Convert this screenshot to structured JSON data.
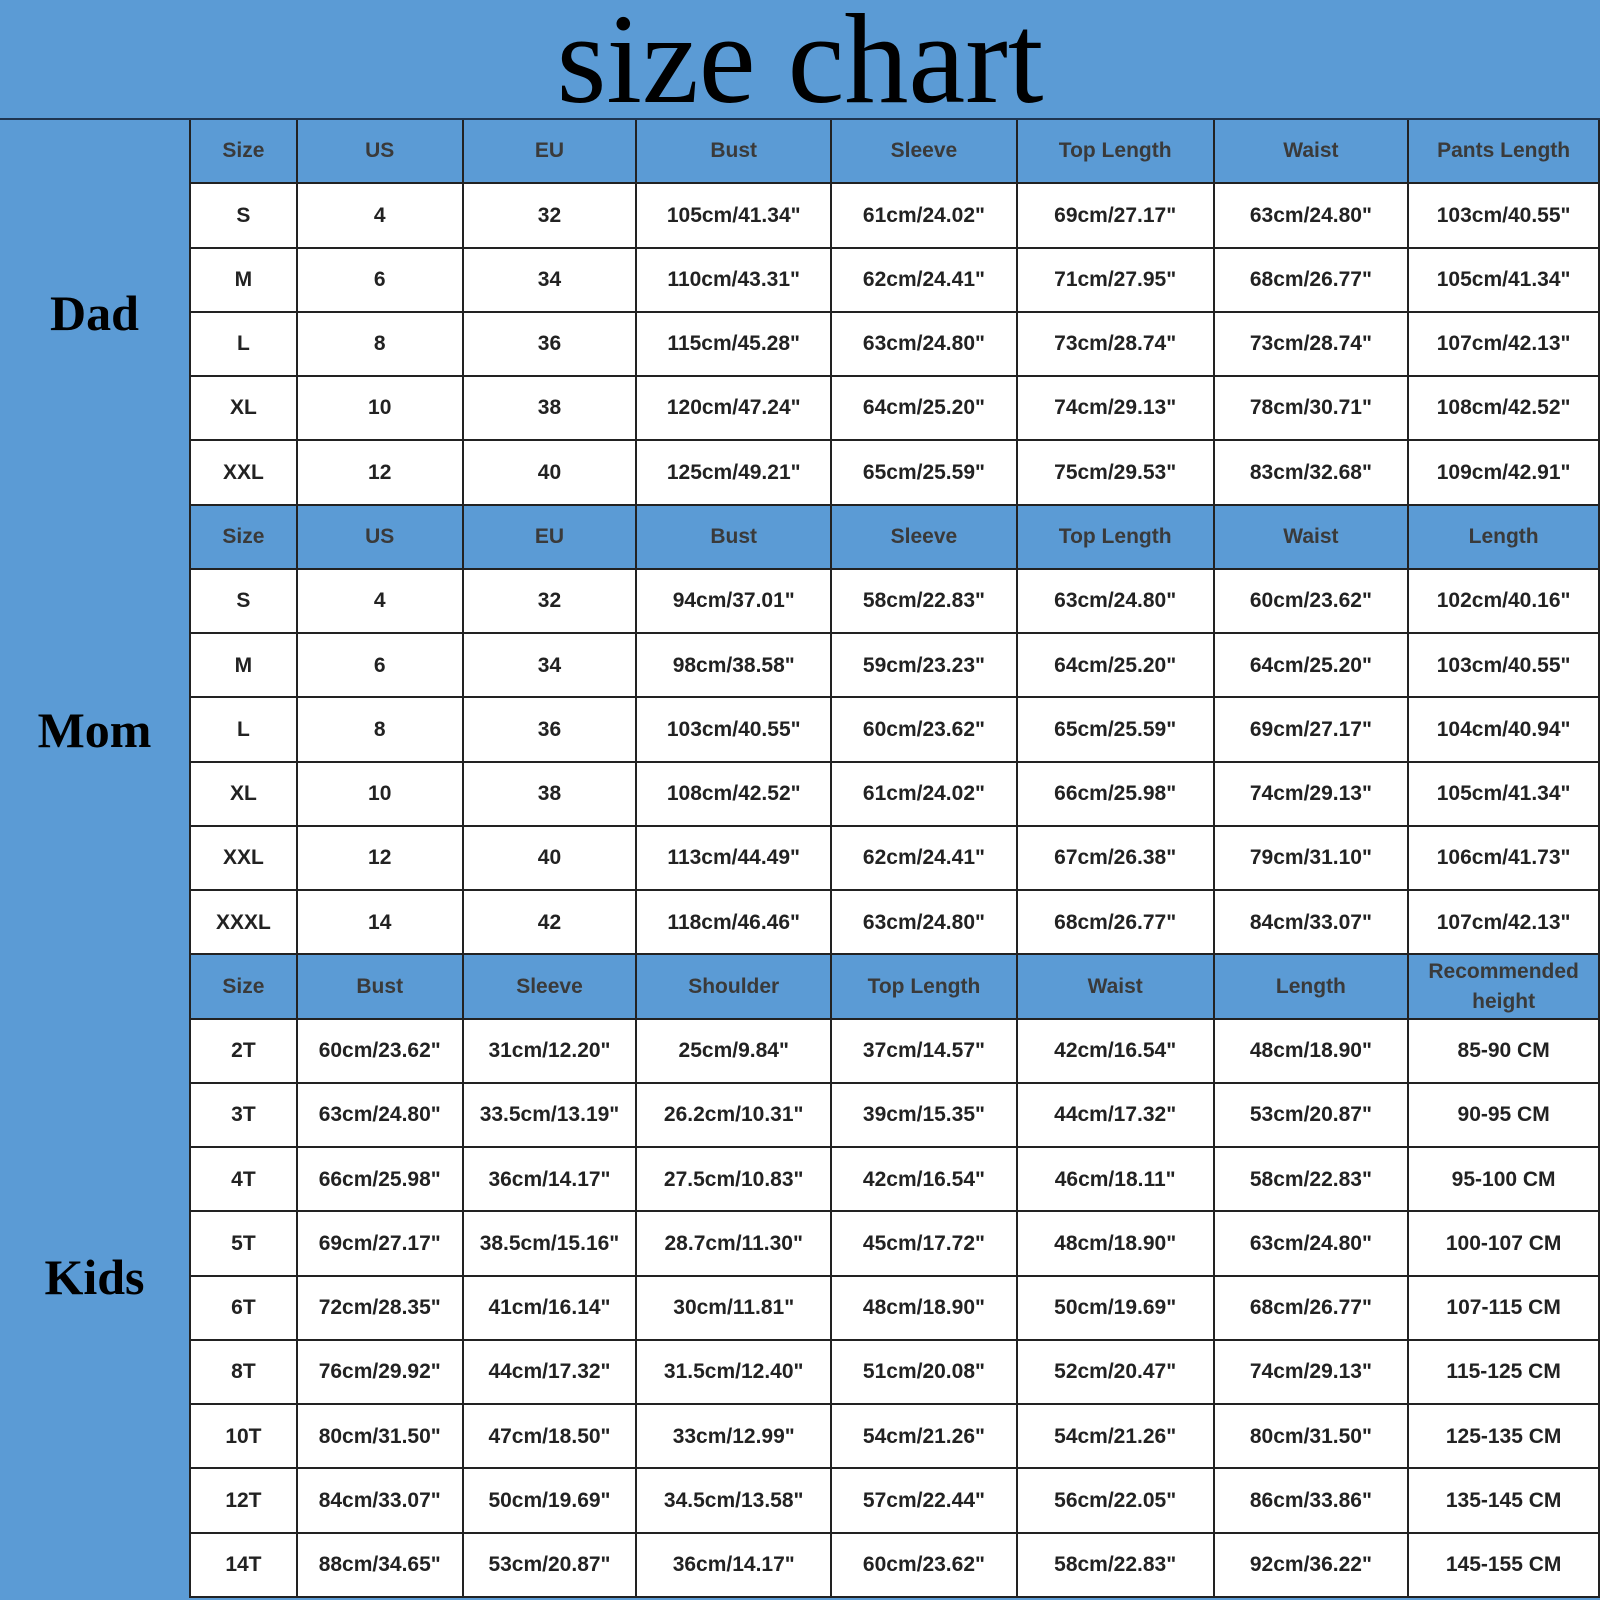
{
  "title": "size chart",
  "sections": [
    {
      "label": "Dad",
      "header": [
        "Size",
        "US",
        "EU",
        "Bust",
        "Sleeve",
        "Top Length",
        "Waist",
        "Pants Length"
      ],
      "rows": [
        [
          "S",
          "4",
          "32",
          "105cm/41.34\"",
          "61cm/24.02\"",
          "69cm/27.17\"",
          "63cm/24.80\"",
          "103cm/40.55\""
        ],
        [
          "M",
          "6",
          "34",
          "110cm/43.31\"",
          "62cm/24.41\"",
          "71cm/27.95\"",
          "68cm/26.77\"",
          "105cm/41.34\""
        ],
        [
          "L",
          "8",
          "36",
          "115cm/45.28\"",
          "63cm/24.80\"",
          "73cm/28.74\"",
          "73cm/28.74\"",
          "107cm/42.13\""
        ],
        [
          "XL",
          "10",
          "38",
          "120cm/47.24\"",
          "64cm/25.20\"",
          "74cm/29.13\"",
          "78cm/30.71\"",
          "108cm/42.52\""
        ],
        [
          "XXL",
          "12",
          "40",
          "125cm/49.21\"",
          "65cm/25.59\"",
          "75cm/29.53\"",
          "83cm/32.68\"",
          "109cm/42.91\""
        ]
      ]
    },
    {
      "label": "Mom",
      "header": [
        "Size",
        "US",
        "EU",
        "Bust",
        "Sleeve",
        "Top Length",
        "Waist",
        "Length"
      ],
      "rows": [
        [
          "S",
          "4",
          "32",
          "94cm/37.01\"",
          "58cm/22.83\"",
          "63cm/24.80\"",
          "60cm/23.62\"",
          "102cm/40.16\""
        ],
        [
          "M",
          "6",
          "34",
          "98cm/38.58\"",
          "59cm/23.23\"",
          "64cm/25.20\"",
          "64cm/25.20\"",
          "103cm/40.55\""
        ],
        [
          "L",
          "8",
          "36",
          "103cm/40.55\"",
          "60cm/23.62\"",
          "65cm/25.59\"",
          "69cm/27.17\"",
          "104cm/40.94\""
        ],
        [
          "XL",
          "10",
          "38",
          "108cm/42.52\"",
          "61cm/24.02\"",
          "66cm/25.98\"",
          "74cm/29.13\"",
          "105cm/41.34\""
        ],
        [
          "XXL",
          "12",
          "40",
          "113cm/44.49\"",
          "62cm/24.41\"",
          "67cm/26.38\"",
          "79cm/31.10\"",
          "106cm/41.73\""
        ],
        [
          "XXXL",
          "14",
          "42",
          "118cm/46.46\"",
          "63cm/24.80\"",
          "68cm/26.77\"",
          "84cm/33.07\"",
          "107cm/42.13\""
        ]
      ]
    },
    {
      "label": "Kids",
      "header": [
        "Size",
        "Bust",
        "Sleeve",
        "Shoulder",
        "Top Length",
        "Waist",
        "Length",
        "Recommended height"
      ],
      "rows": [
        [
          "2T",
          "60cm/23.62\"",
          "31cm/12.20\"",
          "25cm/9.84\"",
          "37cm/14.57\"",
          "42cm/16.54\"",
          "48cm/18.90\"",
          "85-90 CM"
        ],
        [
          "3T",
          "63cm/24.80\"",
          "33.5cm/13.19\"",
          "26.2cm/10.31\"",
          "39cm/15.35\"",
          "44cm/17.32\"",
          "53cm/20.87\"",
          "90-95 CM"
        ],
        [
          "4T",
          "66cm/25.98\"",
          "36cm/14.17\"",
          "27.5cm/10.83\"",
          "42cm/16.54\"",
          "46cm/18.11\"",
          "58cm/22.83\"",
          "95-100 CM"
        ],
        [
          "5T",
          "69cm/27.17\"",
          "38.5cm/15.16\"",
          "28.7cm/11.30\"",
          "45cm/17.72\"",
          "48cm/18.90\"",
          "63cm/24.80\"",
          "100-107 CM"
        ],
        [
          "6T",
          "72cm/28.35\"",
          "41cm/16.14\"",
          "30cm/11.81\"",
          "48cm/18.90\"",
          "50cm/19.69\"",
          "68cm/26.77\"",
          "107-115 CM"
        ],
        [
          "8T",
          "76cm/29.92\"",
          "44cm/17.32\"",
          "31.5cm/12.40\"",
          "51cm/20.08\"",
          "52cm/20.47\"",
          "74cm/29.13\"",
          "115-125 CM"
        ],
        [
          "10T",
          "80cm/31.50\"",
          "47cm/18.50\"",
          "33cm/12.99\"",
          "54cm/21.26\"",
          "54cm/21.26\"",
          "80cm/31.50\"",
          "125-135 CM"
        ],
        [
          "12T",
          "84cm/33.07\"",
          "50cm/19.69\"",
          "34.5cm/13.58\"",
          "57cm/22.44\"",
          "56cm/22.05\"",
          "86cm/33.86\"",
          "135-145 CM"
        ],
        [
          "14T",
          "88cm/34.65\"",
          "53cm/20.87\"",
          "36cm/14.17\"",
          "60cm/23.62\"",
          "58cm/22.83\"",
          "92cm/36.22\"",
          "145-155 CM"
        ]
      ]
    }
  ]
}
